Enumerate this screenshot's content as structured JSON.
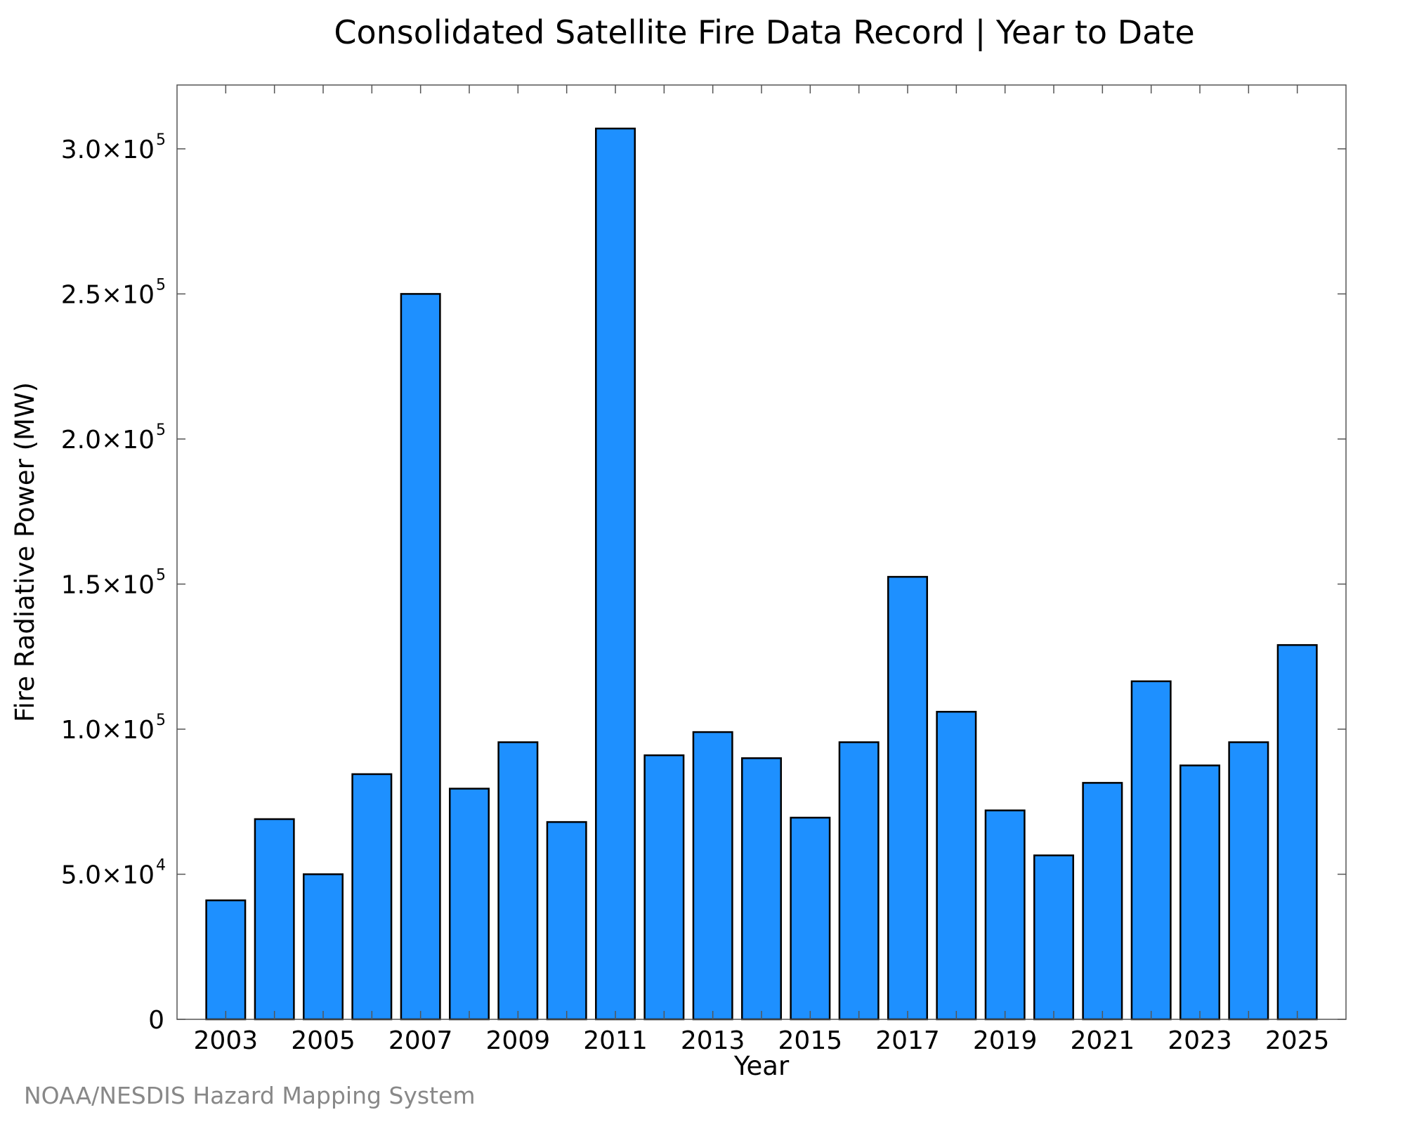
{
  "credit": "NOAA/NESDIS Hazard Mapping System",
  "chart_data": {
    "type": "bar",
    "title": "Consolidated Satellite Fire Data Record | Year to Date",
    "xlabel": "Year",
    "ylabel": "Fire Radiative Power (MW)",
    "categories": [
      "2003",
      "2004",
      "2005",
      "2006",
      "2007",
      "2008",
      "2009",
      "2010",
      "2011",
      "2012",
      "2013",
      "2014",
      "2015",
      "2016",
      "2017",
      "2018",
      "2019",
      "2020",
      "2021",
      "2022",
      "2023",
      "2024",
      "2025"
    ],
    "values": [
      41000,
      69000,
      50000,
      84500,
      250000,
      79500,
      95500,
      68000,
      307000,
      91000,
      99000,
      90000,
      69500,
      95500,
      152500,
      106000,
      72000,
      56500,
      81500,
      116500,
      87500,
      95500,
      129000
    ],
    "x_tick_labels": [
      "2003",
      "2005",
      "2007",
      "2009",
      "2011",
      "2013",
      "2015",
      "2017",
      "2019",
      "2021",
      "2023",
      "2025"
    ],
    "y_ticks": [
      {
        "value": 0,
        "mantissa": "0",
        "exp": ""
      },
      {
        "value": 50000,
        "mantissa": "5.0×10",
        "exp": "4"
      },
      {
        "value": 100000,
        "mantissa": "1.0×10",
        "exp": "5"
      },
      {
        "value": 150000,
        "mantissa": "1.5×10",
        "exp": "5"
      },
      {
        "value": 200000,
        "mantissa": "2.0×10",
        "exp": "5"
      },
      {
        "value": 250000,
        "mantissa": "2.5×10",
        "exp": "5"
      },
      {
        "value": 300000,
        "mantissa": "3.0×10",
        "exp": "5"
      }
    ],
    "ylim": [
      0,
      322000
    ],
    "xlim": [
      2002.0,
      2026.0
    ],
    "grid": false,
    "legend": "none",
    "colors": {
      "bar_fill": "#1e90ff",
      "bar_stroke": "#000000",
      "axis": "#555555",
      "text": "#000000"
    }
  }
}
